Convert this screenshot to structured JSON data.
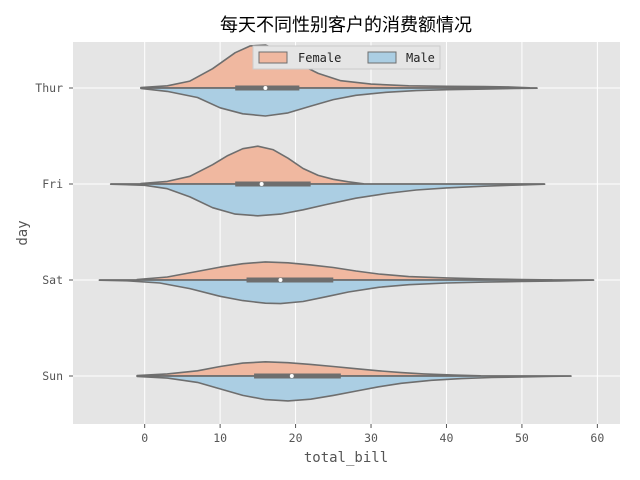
{
  "chart_data": {
    "type": "violin",
    "title": "每天不同性别客户的消费额情况",
    "xlabel": "total_bill",
    "ylabel": "day",
    "xlim": [
      -9.5,
      63
    ],
    "xticks": [
      0,
      10,
      20,
      30,
      40,
      50,
      60
    ],
    "categories": [
      "Thur",
      "Fri",
      "Sat",
      "Sun"
    ],
    "legend_position": "upper-center",
    "grid": true,
    "colors": {
      "background": "#e5e5e5",
      "grid": "#ffffff",
      "outline": "#6e6e6e",
      "box": "#6e6e6e",
      "median": "#ffffff",
      "axis_text": "#555555"
    },
    "series": [
      {
        "name": "Female",
        "color": "#f0b8a0",
        "side": "upper",
        "violins": [
          {
            "day": "Thur",
            "min": -0.5,
            "max": 51,
            "q1": 12,
            "median": 16,
            "q3": 20.5,
            "density": [
              [
                -0.5,
                0.01
              ],
              [
                3,
                0.05
              ],
              [
                6,
                0.16
              ],
              [
                9,
                0.45
              ],
              [
                12,
                0.82
              ],
              [
                14,
                0.98
              ],
              [
                16,
                1.0
              ],
              [
                18,
                0.86
              ],
              [
                20,
                0.6
              ],
              [
                23,
                0.34
              ],
              [
                26,
                0.17
              ],
              [
                30,
                0.09
              ],
              [
                35,
                0.05
              ],
              [
                40,
                0.04
              ],
              [
                45,
                0.035
              ],
              [
                48,
                0.025
              ],
              [
                51,
                0.005
              ]
            ]
          },
          {
            "day": "Fri",
            "min": -0.5,
            "max": 29,
            "q1": 12,
            "median": 15.5,
            "q3": 22,
            "density": [
              [
                -0.5,
                0.01
              ],
              [
                3,
                0.06
              ],
              [
                6,
                0.18
              ],
              [
                9,
                0.45
              ],
              [
                11,
                0.66
              ],
              [
                13,
                0.82
              ],
              [
                15,
                0.88
              ],
              [
                17,
                0.8
              ],
              [
                19,
                0.6
              ],
              [
                21,
                0.36
              ],
              [
                23,
                0.2
              ],
              [
                25,
                0.11
              ],
              [
                27,
                0.05
              ],
              [
                29,
                0.005
              ]
            ]
          },
          {
            "day": "Sat",
            "min": -1,
            "max": 54,
            "q1": 13.5,
            "median": 18,
            "q3": 25,
            "density": [
              [
                -1,
                0.01
              ],
              [
                3,
                0.07
              ],
              [
                7,
                0.2
              ],
              [
                10,
                0.3
              ],
              [
                13,
                0.38
              ],
              [
                16,
                0.42
              ],
              [
                19,
                0.4
              ],
              [
                22,
                0.35
              ],
              [
                25,
                0.29
              ],
              [
                28,
                0.21
              ],
              [
                31,
                0.14
              ],
              [
                35,
                0.08
              ],
              [
                40,
                0.05
              ],
              [
                45,
                0.025
              ],
              [
                50,
                0.012
              ],
              [
                54,
                0.003
              ]
            ]
          },
          {
            "day": "Sun",
            "min": -1,
            "max": 44.5,
            "q1": 14.5,
            "median": 19.5,
            "q3": 26,
            "density": [
              [
                -1,
                0.01
              ],
              [
                3,
                0.05
              ],
              [
                7,
                0.12
              ],
              [
                10,
                0.22
              ],
              [
                13,
                0.3
              ],
              [
                16,
                0.33
              ],
              [
                19,
                0.31
              ],
              [
                22,
                0.27
              ],
              [
                25,
                0.22
              ],
              [
                28,
                0.17
              ],
              [
                31,
                0.12
              ],
              [
                34,
                0.08
              ],
              [
                37,
                0.05
              ],
              [
                41,
                0.02
              ],
              [
                44.5,
                0.004
              ]
            ]
          }
        ]
      },
      {
        "name": "Male",
        "color": "#abcee3",
        "side": "lower",
        "violins": [
          {
            "day": "Thur",
            "min": -0.5,
            "max": 52,
            "q1": 12,
            "median": 16,
            "q3": 20.5,
            "density": [
              [
                -0.5,
                0.01
              ],
              [
                3,
                0.08
              ],
              [
                7,
                0.22
              ],
              [
                10,
                0.46
              ],
              [
                13,
                0.6
              ],
              [
                16,
                0.65
              ],
              [
                19,
                0.58
              ],
              [
                22,
                0.42
              ],
              [
                25,
                0.27
              ],
              [
                28,
                0.17
              ],
              [
                32,
                0.1
              ],
              [
                36,
                0.06
              ],
              [
                40,
                0.04
              ],
              [
                45,
                0.025
              ],
              [
                49,
                0.012
              ],
              [
                52,
                0.004
              ]
            ]
          },
          {
            "day": "Fri",
            "min": -4.5,
            "max": 53,
            "q1": 12,
            "median": 15.5,
            "q3": 22,
            "density": [
              [
                -4.5,
                0.005
              ],
              [
                0,
                0.03
              ],
              [
                3,
                0.11
              ],
              [
                6,
                0.3
              ],
              [
                9,
                0.55
              ],
              [
                12,
                0.7
              ],
              [
                15,
                0.74
              ],
              [
                18,
                0.7
              ],
              [
                21,
                0.6
              ],
              [
                24,
                0.48
              ],
              [
                28,
                0.33
              ],
              [
                32,
                0.22
              ],
              [
                36,
                0.14
              ],
              [
                40,
                0.09
              ],
              [
                45,
                0.05
              ],
              [
                50,
                0.02
              ],
              [
                53,
                0.004
              ]
            ]
          },
          {
            "day": "Sat",
            "min": -6,
            "max": 59.5,
            "q1": 13.5,
            "median": 18,
            "q3": 25,
            "density": [
              [
                -6,
                0.005
              ],
              [
                -2,
                0.02
              ],
              [
                2,
                0.07
              ],
              [
                6,
                0.2
              ],
              [
                10,
                0.38
              ],
              [
                13,
                0.48
              ],
              [
                16,
                0.54
              ],
              [
                18,
                0.55
              ],
              [
                21,
                0.5
              ],
              [
                24,
                0.39
              ],
              [
                27,
                0.28
              ],
              [
                31,
                0.17
              ],
              [
                35,
                0.11
              ],
              [
                40,
                0.07
              ],
              [
                45,
                0.05
              ],
              [
                50,
                0.035
              ],
              [
                55,
                0.02
              ],
              [
                59.5,
                0.003
              ]
            ]
          },
          {
            "day": "Sun",
            "min": -1,
            "max": 56.5,
            "q1": 14.5,
            "median": 19.5,
            "q3": 26,
            "density": [
              [
                -1,
                0.01
              ],
              [
                3,
                0.05
              ],
              [
                7,
                0.15
              ],
              [
                10,
                0.3
              ],
              [
                13,
                0.45
              ],
              [
                16,
                0.55
              ],
              [
                19,
                0.58
              ],
              [
                22,
                0.54
              ],
              [
                25,
                0.45
              ],
              [
                28,
                0.35
              ],
              [
                31,
                0.25
              ],
              [
                34,
                0.17
              ],
              [
                38,
                0.1
              ],
              [
                42,
                0.06
              ],
              [
                46,
                0.035
              ],
              [
                50,
                0.02
              ],
              [
                54,
                0.008
              ],
              [
                56.5,
                0.003
              ]
            ]
          }
        ]
      }
    ]
  }
}
